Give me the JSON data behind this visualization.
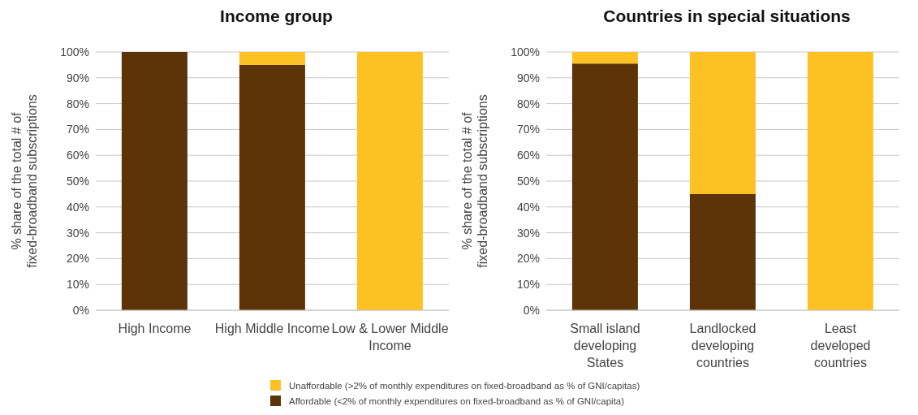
{
  "chart_data": [
    {
      "type": "bar",
      "title": "Income group",
      "ylabel": "% share of the total # of fixed-broadband subscriptions",
      "categories": [
        "High Income",
        "High Middle Income",
        "Low & Lower Middle Income"
      ],
      "stacked": true,
      "series": [
        {
          "color": "#5c3408",
          "values": [
            100,
            95,
            0
          ]
        },
        {
          "color": "#fdc123",
          "values": [
            0,
            5,
            100
          ]
        }
      ],
      "ylim": [
        0,
        100
      ],
      "yticks": [
        {
          "value": 0,
          "label": "0%"
        },
        {
          "value": 10,
          "label": "10%"
        },
        {
          "value": 20,
          "label": "20%"
        },
        {
          "value": 30,
          "label": "30%"
        },
        {
          "value": 40,
          "label": "40%"
        },
        {
          "value": 50,
          "label": "50%"
        },
        {
          "value": 60,
          "label": "60%"
        },
        {
          "value": 70,
          "label": "70%"
        },
        {
          "value": 80,
          "label": "80%"
        },
        {
          "value": 90,
          "label": "90%"
        },
        {
          "value": 100,
          "label": "100%"
        }
      ],
      "grid": "y"
    },
    {
      "type": "bar",
      "title": "Countries in special situations",
      "ylabel": "% share of the total # of fixed-broadband subscriptions",
      "categories": [
        "Small island developing States",
        "Landlocked developing countries",
        "Least developed countries"
      ],
      "stacked": true,
      "series": [
        {
          "name": "Affordable (<2% of monthly expenditures on fixed-broadband as % of GNI/capita)",
          "color": "#5c3408",
          "values": [
            95.5,
            45,
            0
          ]
        },
        {
          "name": "Unaffordable (>2% of monthly expenditures on fixed-broadband as % of GNI/capitas)",
          "color": "#fdc123",
          "values": [
            4.5,
            55,
            100
          ]
        }
      ],
      "ylim": [
        0,
        100
      ],
      "yticks": [
        {
          "value": 0,
          "label": "0%"
        },
        {
          "value": 10,
          "label": "10%"
        },
        {
          "value": 20,
          "label": "20%"
        },
        {
          "value": 30,
          "label": "30%"
        },
        {
          "value": 40,
          "label": "40%"
        },
        {
          "value": 50,
          "label": "50%"
        },
        {
          "value": 60,
          "label": "60%"
        },
        {
          "value": 70,
          "label": "70%"
        },
        {
          "value": 80,
          "label": "80%"
        },
        {
          "value": 90,
          "label": "90%"
        },
        {
          "value": 100,
          "label": "100%"
        }
      ],
      "grid": "y",
      "legend": "bottom"
    }
  ]
}
